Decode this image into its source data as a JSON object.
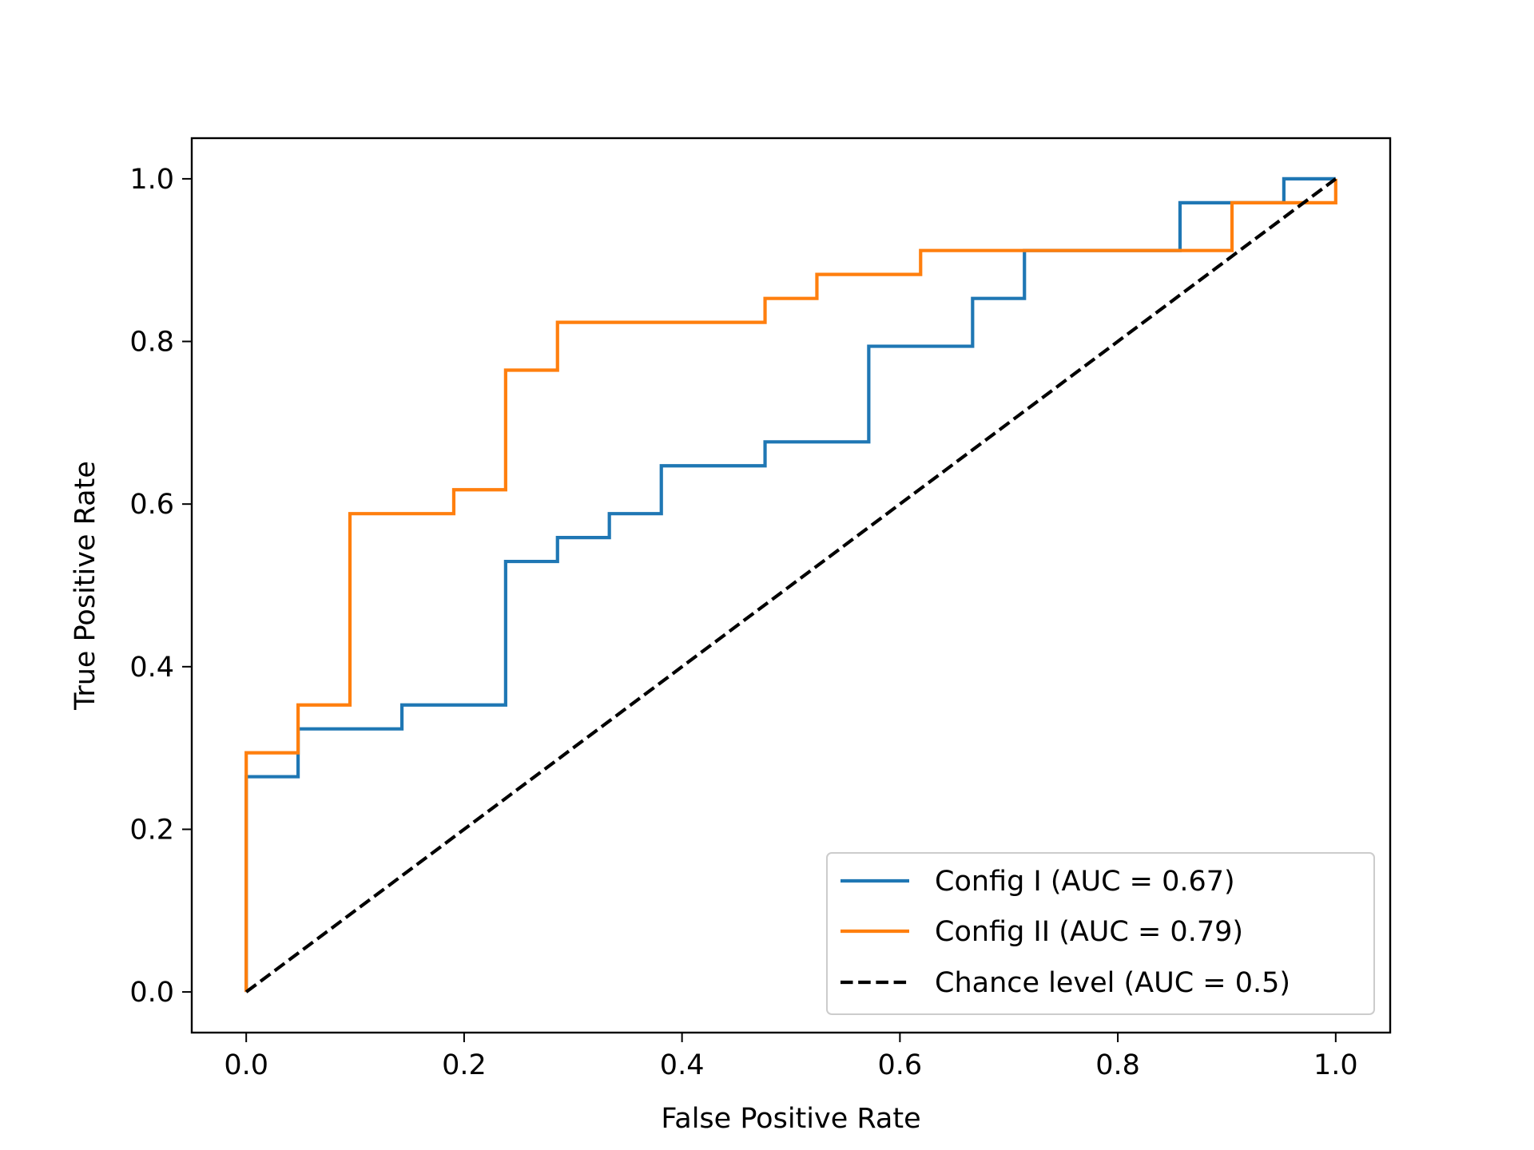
{
  "chart_data": {
    "type": "line",
    "title": "",
    "xlabel": "False Positive Rate",
    "ylabel": "True Positive Rate",
    "xlim": [
      -0.05,
      1.05
    ],
    "ylim": [
      -0.05,
      1.05
    ],
    "xticks": [
      0.0,
      0.2,
      0.4,
      0.6,
      0.8,
      1.0
    ],
    "yticks": [
      0.0,
      0.2,
      0.4,
      0.6,
      0.8,
      1.0
    ],
    "xtick_labels": [
      "0.0",
      "0.2",
      "0.4",
      "0.6",
      "0.8",
      "1.0"
    ],
    "ytick_labels": [
      "0.0",
      "0.2",
      "0.4",
      "0.6",
      "0.8",
      "1.0"
    ],
    "grid": false,
    "legend_position": "lower-right",
    "series": [
      {
        "name": "Config I (AUC = 0.67)",
        "color": "#1f77b4",
        "style": "solid",
        "x": [
          0.0,
          0.0,
          0.0476,
          0.0476,
          0.1429,
          0.1429,
          0.2381,
          0.2381,
          0.2857,
          0.2857,
          0.3333,
          0.3333,
          0.381,
          0.381,
          0.4762,
          0.4762,
          0.5714,
          0.5714,
          0.6667,
          0.6667,
          0.7143,
          0.7143,
          0.8571,
          0.8571,
          0.9524,
          0.9524,
          1.0
        ],
        "y": [
          0.0,
          0.2647,
          0.2647,
          0.3235,
          0.3235,
          0.3529,
          0.3529,
          0.5294,
          0.5294,
          0.5588,
          0.5588,
          0.5882,
          0.5882,
          0.6471,
          0.6471,
          0.6765,
          0.6765,
          0.7941,
          0.7941,
          0.8529,
          0.8529,
          0.9118,
          0.9118,
          0.9706,
          0.9706,
          1.0,
          1.0
        ]
      },
      {
        "name": "Config II (AUC = 0.79)",
        "color": "#ff7f0e",
        "style": "solid",
        "x": [
          0.0,
          0.0,
          0.0476,
          0.0476,
          0.0952,
          0.0952,
          0.1905,
          0.1905,
          0.2381,
          0.2381,
          0.2857,
          0.2857,
          0.4762,
          0.4762,
          0.5238,
          0.5238,
          0.619,
          0.619,
          0.9048,
          0.9048,
          1.0,
          1.0
        ],
        "y": [
          0.0,
          0.2941,
          0.2941,
          0.3529,
          0.3529,
          0.5882,
          0.5882,
          0.6176,
          0.6176,
          0.7647,
          0.7647,
          0.8235,
          0.8235,
          0.8529,
          0.8529,
          0.8824,
          0.8824,
          0.9118,
          0.9118,
          0.9706,
          0.9706,
          1.0
        ]
      },
      {
        "name": "Chance level (AUC = 0.5)",
        "color": "#000000",
        "style": "dashed",
        "x": [
          0.0,
          1.0
        ],
        "y": [
          0.0,
          1.0
        ]
      }
    ]
  }
}
